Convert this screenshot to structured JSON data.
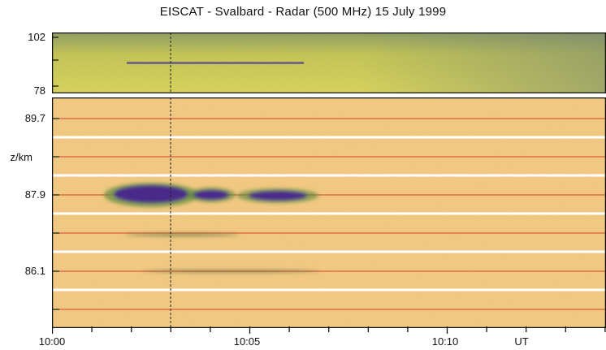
{
  "title": "EISCAT - Svalbard - Radar  (500 MHz)  15 July 1999",
  "colors": {
    "background_top": "#d8d24a",
    "background_main": "#f0c97a",
    "echo": "#4a2a8a",
    "red_line": "#d9452c",
    "white_line": "#ffffff"
  },
  "chart_data": [
    {
      "type": "heatmap",
      "panel": "top",
      "y_tick_labels": [
        "102",
        "78"
      ],
      "ylim": [
        78,
        102
      ],
      "echo_layers": [
        {
          "start": "10:02",
          "end": "10:06"
        }
      ]
    },
    {
      "type": "heatmap",
      "panel": "main",
      "ylabel": "z/km",
      "y_tick_labels": [
        "89.7",
        "87.9",
        "86.1"
      ],
      "x_tick_labels": [
        "10:00",
        "10:05",
        "10:10",
        "UT"
      ],
      "echo_layers": [
        {
          "start": "10:01.5",
          "end": "10:03.3",
          "intensity": "strong"
        },
        {
          "start": "10:03.8",
          "end": "10:04.6",
          "intensity": "medium"
        },
        {
          "start": "10:05.0",
          "end": "10:06.8",
          "intensity": "medium"
        }
      ]
    }
  ]
}
